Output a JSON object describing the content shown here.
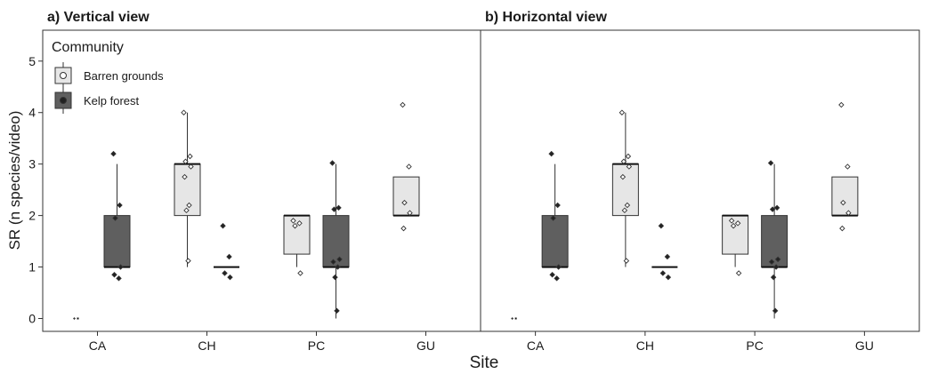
{
  "chart_data": {
    "type": "box",
    "xlabel": "Site",
    "ylabel": "SR (n species/video)",
    "categories": [
      "CA",
      "CH",
      "PC",
      "GU"
    ],
    "y_ticks": [
      0,
      1,
      2,
      3,
      4,
      5
    ],
    "ylim": [
      -0.25,
      5.6
    ],
    "grid": false,
    "legend": {
      "title": "Community",
      "placement": "top-left",
      "items": [
        {
          "name": "Barren grounds",
          "color": "#e6e6e6"
        },
        {
          "name": "Kelp forest",
          "color": "#5f5f5f"
        }
      ]
    },
    "panels": [
      {
        "title": "a) Vertical view",
        "series": [
          {
            "name": "Barren grounds",
            "boxes": [
              {
                "category": "CA",
                "min": 0,
                "q1": 0,
                "median": 0,
                "q3": 0,
                "max": 0,
                "points": [
                  0
                ]
              },
              {
                "category": "CH",
                "min": 1.0,
                "q1": 2.0,
                "median": 3.0,
                "q3": 3.0,
                "max": 4.0,
                "points": [
                  4.0,
                  3.15,
                  3.05,
                  2.95,
                  2.75,
                  2.2,
                  2.1,
                  1.12
                ]
              },
              {
                "category": "PC",
                "min": 1.0,
                "q1": 1.25,
                "median": 2.0,
                "q3": 2.0,
                "max": 2.0,
                "points": [
                  1.9,
                  1.85,
                  1.8,
                  0.88
                ]
              },
              {
                "category": "GU",
                "min": 2.0,
                "q1": 2.0,
                "median": 2.0,
                "q3": 2.75,
                "max": 2.75,
                "points": [
                  4.15,
                  2.95,
                  2.25,
                  2.05,
                  1.75
                ]
              }
            ]
          },
          {
            "name": "Kelp forest",
            "boxes": [
              {
                "category": "CA",
                "min": 1.0,
                "q1": 1.0,
                "median": 1.0,
                "q3": 2.0,
                "max": 3.0,
                "points": [
                  3.2,
                  2.2,
                  1.95,
                  1.0,
                  0.85,
                  0.78
                ]
              },
              {
                "category": "CH",
                "min": 1.0,
                "q1": 1.0,
                "median": 1.0,
                "q3": 1.0,
                "max": 1.0,
                "points": [
                  1.8,
                  1.2,
                  0.88,
                  0.8
                ]
              },
              {
                "category": "PC",
                "min": 0.0,
                "q1": 1.0,
                "median": 1.0,
                "q3": 2.0,
                "max": 3.0,
                "points": [
                  3.02,
                  2.15,
                  2.12,
                  1.15,
                  1.1,
                  1.0,
                  0.8,
                  0.15
                ]
              },
              null
            ]
          }
        ]
      },
      {
        "title": "b) Horizontal view",
        "series": [
          {
            "name": "Barren grounds",
            "boxes": [
              {
                "category": "CA",
                "min": 0,
                "q1": 0,
                "median": 0,
                "q3": 0,
                "max": 0,
                "points": [
                  0
                ]
              },
              {
                "category": "CH",
                "min": 1.0,
                "q1": 2.0,
                "median": 3.0,
                "q3": 3.0,
                "max": 4.0,
                "points": [
                  4.0,
                  3.15,
                  3.05,
                  2.95,
                  2.75,
                  2.2,
                  2.1,
                  1.12
                ]
              },
              {
                "category": "PC",
                "min": 1.0,
                "q1": 1.25,
                "median": 2.0,
                "q3": 2.0,
                "max": 2.0,
                "points": [
                  1.9,
                  1.85,
                  1.8,
                  0.88
                ]
              },
              {
                "category": "GU",
                "min": 2.0,
                "q1": 2.0,
                "median": 2.0,
                "q3": 2.75,
                "max": 2.75,
                "points": [
                  4.15,
                  2.95,
                  2.25,
                  2.05,
                  1.75
                ]
              }
            ]
          },
          {
            "name": "Kelp forest",
            "boxes": [
              {
                "category": "CA",
                "min": 1.0,
                "q1": 1.0,
                "median": 1.0,
                "q3": 2.0,
                "max": 3.0,
                "points": [
                  3.2,
                  2.2,
                  1.95,
                  1.0,
                  0.85,
                  0.78
                ]
              },
              {
                "category": "CH",
                "min": 1.0,
                "q1": 1.0,
                "median": 1.0,
                "q3": 1.0,
                "max": 1.0,
                "points": [
                  1.8,
                  1.2,
                  0.88,
                  0.8
                ]
              },
              {
                "category": "PC",
                "min": 0.0,
                "q1": 1.0,
                "median": 1.0,
                "q3": 2.0,
                "max": 3.0,
                "points": [
                  3.02,
                  2.15,
                  2.12,
                  1.15,
                  1.1,
                  1.0,
                  0.8,
                  0.15
                ]
              },
              null
            ]
          }
        ]
      }
    ]
  }
}
